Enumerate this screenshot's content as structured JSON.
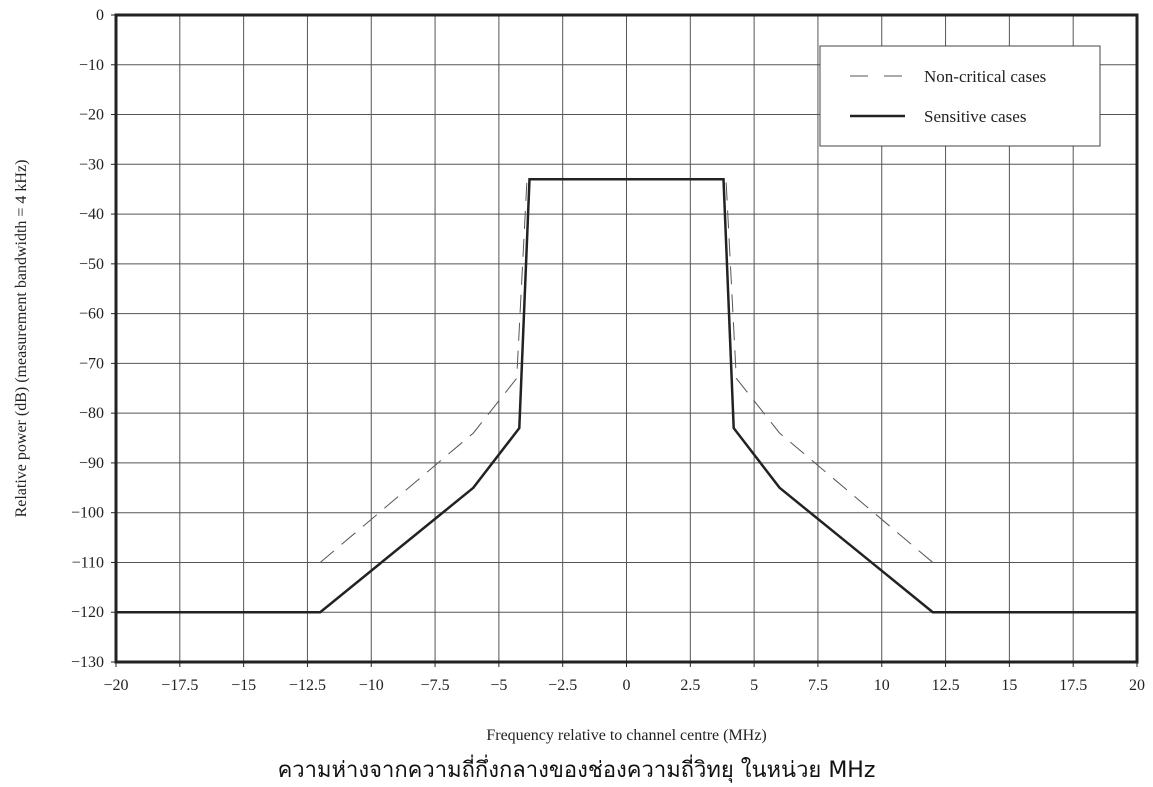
{
  "chart_data": {
    "type": "line",
    "xlabel": "Frequency relative to channel centre (MHz)",
    "ylabel": "Relative power (dB) (measurement bandwidth = 4 kHz)",
    "xlim": [
      -20,
      20
    ],
    "ylim": [
      -130,
      0
    ],
    "xticks": [
      -20,
      -17.5,
      -15,
      -12.5,
      -10,
      -7.5,
      -5,
      -2.5,
      0,
      2.5,
      5,
      7.5,
      10,
      12.5,
      15,
      17.5,
      20
    ],
    "xtick_labels": [
      "−20",
      "−17.5",
      "−15",
      "−12.5",
      "−10",
      "−7.5",
      "−5",
      "−2.5",
      "0",
      "2.5",
      "5",
      "7.5",
      "10",
      "12.5",
      "15",
      "17.5",
      "20"
    ],
    "yticks": [
      0,
      -10,
      -20,
      -30,
      -40,
      -50,
      -60,
      -70,
      -80,
      -90,
      -100,
      -110,
      -120,
      -130
    ],
    "ytick_labels": [
      "0",
      "−10",
      "−20",
      "−30",
      "−40",
      "−50",
      "−60",
      "−70",
      "−80",
      "−90",
      "−100",
      "−110",
      "−120",
      "−130"
    ],
    "grid": true,
    "legend_position": "top-right",
    "series": [
      {
        "name": "Non-critical cases",
        "style": "dashed",
        "color": "#555555",
        "x": [
          -12,
          -6,
          -4.3,
          -3.9,
          3.9,
          4.3,
          6,
          12
        ],
        "y": [
          -110,
          -84,
          -73,
          -33,
          -33,
          -73,
          -84,
          -110
        ]
      },
      {
        "name": "Sensitive cases",
        "style": "solid",
        "color": "#222222",
        "x": [
          -20,
          -12,
          -6,
          -4.2,
          -3.8,
          3.8,
          4.2,
          6,
          12,
          20
        ],
        "y": [
          -120,
          -120,
          -95,
          -83,
          -33,
          -33,
          -83,
          -95,
          -120,
          -120
        ]
      }
    ]
  },
  "caption": "ความห่างจากความถี่กึ่งกลางของช่องความถี่วิทยุ ในหน่วย MHz"
}
